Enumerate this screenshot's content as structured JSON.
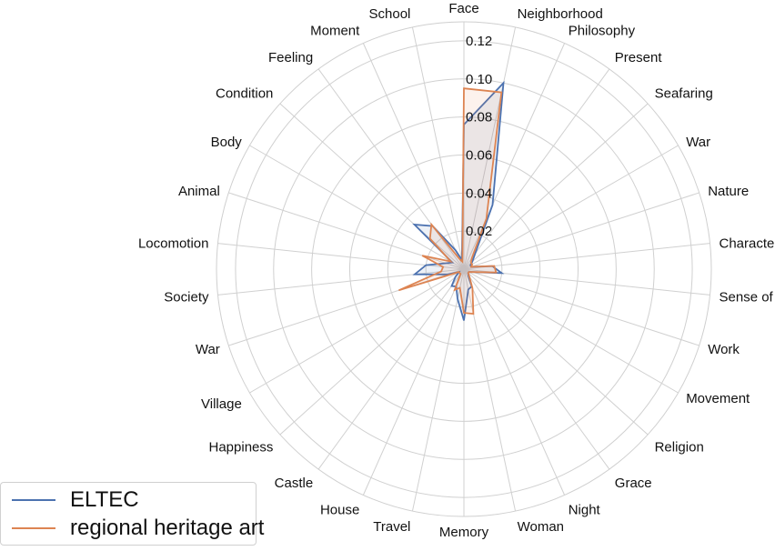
{
  "chart_data": {
    "type": "radar",
    "categories": [
      "Face",
      "Neighborhood",
      "Philosophy",
      "Present",
      "Seafaring",
      "War",
      "Nature",
      "Character",
      "Sense of Time",
      "Work",
      "Movement",
      "Religion",
      "Grace",
      "Night",
      "Woman",
      "Memory",
      "Travel",
      "House",
      "Castle",
      "Happiness",
      "Village",
      "War",
      "Society",
      "Locomotion",
      "Animal",
      "Body",
      "Condition",
      "Feeling",
      "Moment",
      "School"
    ],
    "radial_ticks": [
      "0.02",
      "0.04",
      "0.06",
      "0.08",
      "0.10",
      "0.12"
    ],
    "rlim": [
      0,
      0.13
    ],
    "grid": true,
    "legend_position": "lower-left",
    "series": [
      {
        "name": "ELTEC",
        "color": "#4c72b0",
        "values": [
          0.076,
          0.1,
          0.037,
          0.01,
          0.006,
          0.004,
          0.004,
          0.015,
          0.02,
          0.005,
          0.003,
          0.003,
          0.004,
          0.01,
          0.011,
          0.027,
          0.016,
          0.01,
          0.011,
          0.006,
          0.003,
          0.009,
          0.026,
          0.02,
          0.01,
          0.007,
          0.035,
          0.028,
          0.011,
          0.005
        ]
      },
      {
        "name": "regional heritage art",
        "color": "#dd8452",
        "values": [
          0.095,
          0.095,
          0.029,
          0.007,
          0.005,
          0.005,
          0.004,
          0.016,
          0.017,
          0.005,
          0.003,
          0.003,
          0.005,
          0.011,
          0.024,
          0.023,
          0.01,
          0.012,
          0.003,
          0.003,
          0.003,
          0.036,
          0.012,
          0.011,
          0.023,
          0.008,
          0.024,
          0.029,
          0.006,
          0.004
        ]
      }
    ]
  }
}
